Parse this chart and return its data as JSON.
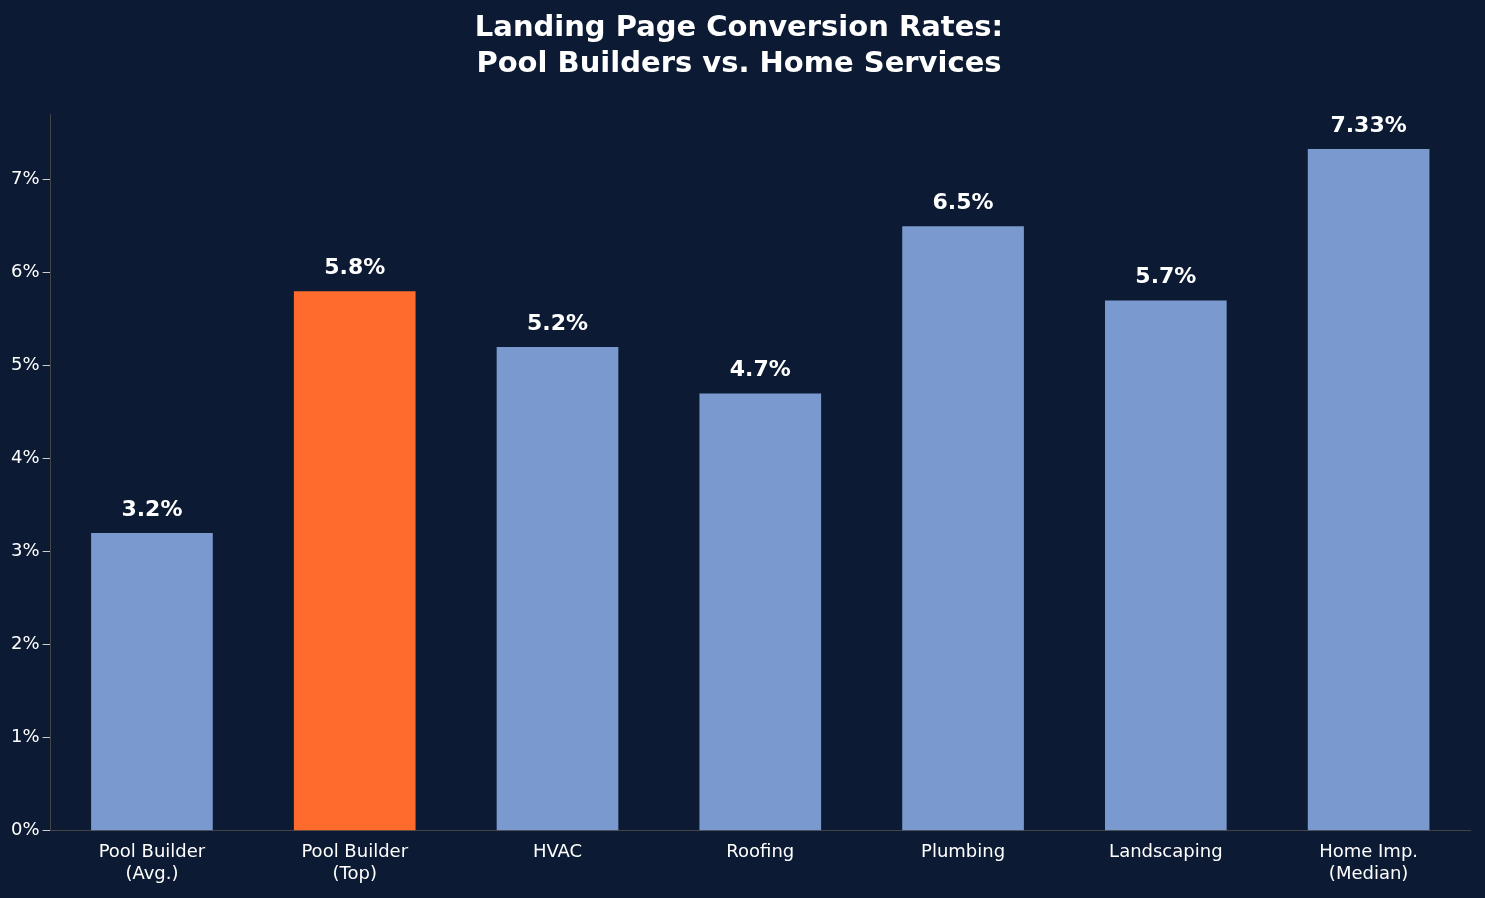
{
  "chart_data": {
    "type": "bar",
    "title": "Landing Page Conversion Rates:\nPool Builders vs. Home Services",
    "categories": [
      "Pool Builder\n(Avg.)",
      "Pool Builder\n(Top)",
      "HVAC",
      "Roofing",
      "Plumbing",
      "Landscaping",
      "Home Imp.\n(Median)"
    ],
    "values": [
      3.2,
      5.8,
      5.2,
      4.7,
      6.5,
      5.7,
      7.33
    ],
    "colors": [
      "#7a99cf",
      "#ff6b2c",
      "#7a99cf",
      "#7a99cf",
      "#7a99cf",
      "#7a99cf",
      "#7a99cf"
    ],
    "value_labels": [
      "3.2%",
      "5.8%",
      "5.2%",
      "4.7%",
      "6.5%",
      "5.7%",
      "7.33%"
    ],
    "ylim": [
      0,
      7.7
    ],
    "yticks": [
      {
        "value": 0,
        "label": "0%"
      },
      {
        "value": 1,
        "label": "1%"
      },
      {
        "value": 2,
        "label": "2%"
      },
      {
        "value": 3,
        "label": "3%"
      },
      {
        "value": 4,
        "label": "4%"
      },
      {
        "value": 5,
        "label": "5%"
      },
      {
        "value": 6,
        "label": "6%"
      },
      {
        "value": 7,
        "label": "7%"
      }
    ],
    "grid": false,
    "legend": false
  }
}
